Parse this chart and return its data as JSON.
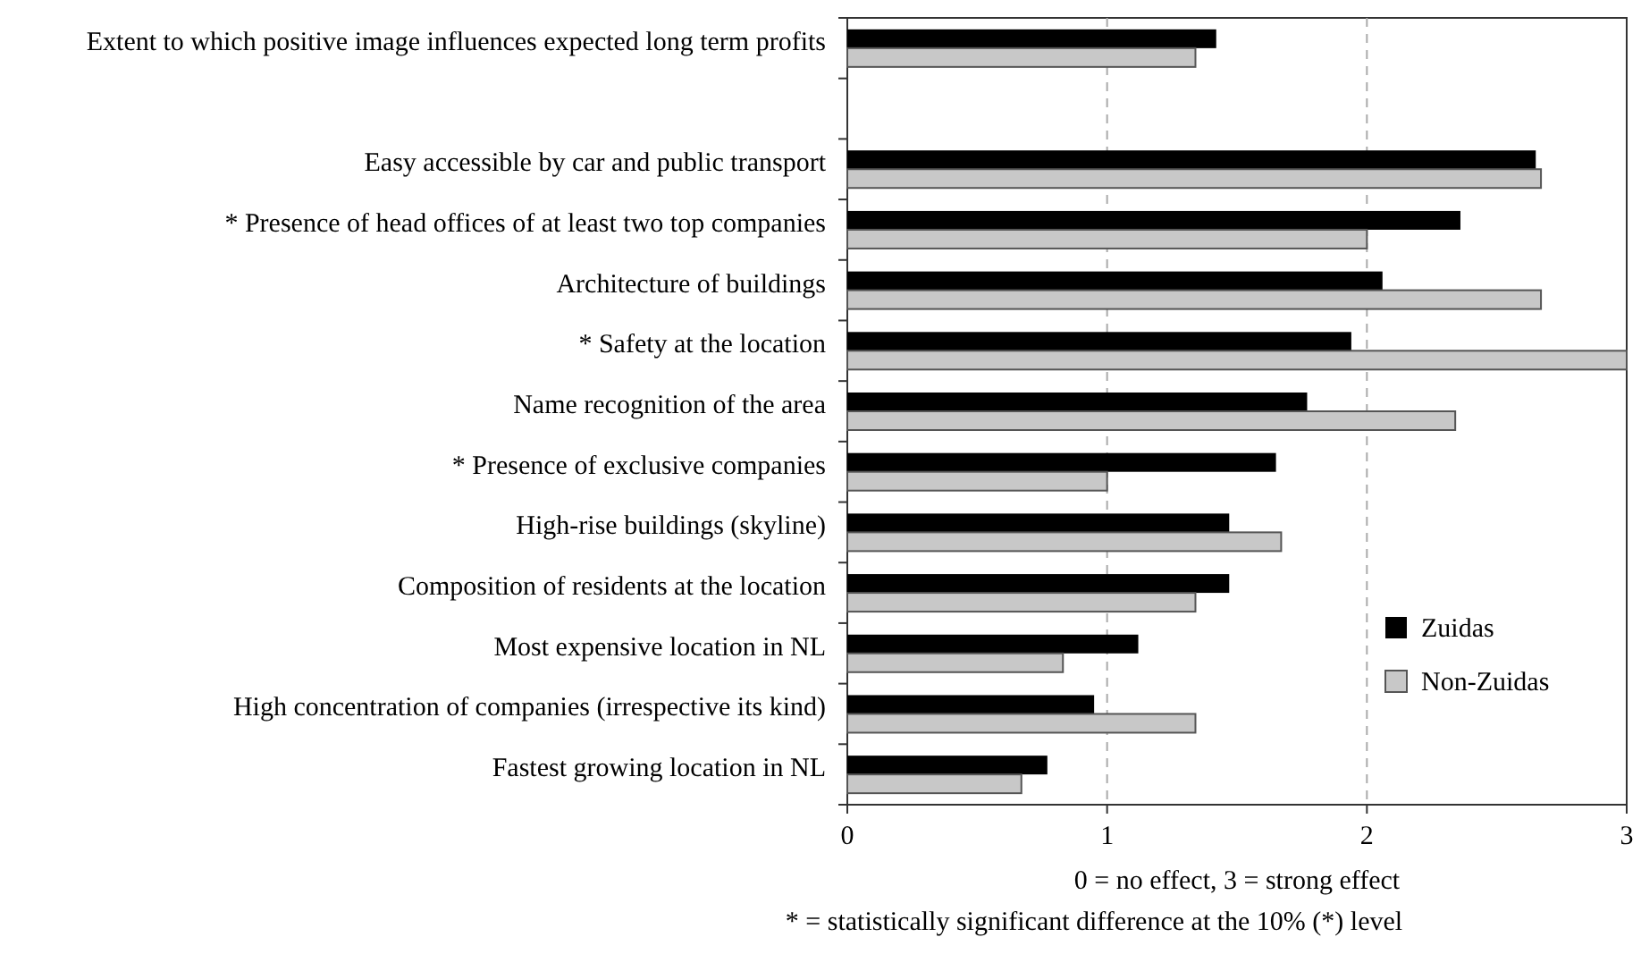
{
  "chart_data": {
    "type": "bar",
    "orientation": "horizontal",
    "categories": [
      "Extent to which positive image influences expected long term profits",
      null,
      "Easy accessible by car and public transport",
      "* Presence of head offices of at least two top companies",
      "Architecture of buildings",
      "* Safety at the location",
      "Name recognition of the area",
      "* Presence of exclusive companies",
      "High-rise buildings (skyline)",
      "Composition of residents at the location",
      "Most expensive location in NL",
      "High concentration of companies (irrespective its kind)",
      "Fastest growing location in NL"
    ],
    "series": [
      {
        "name": "Zuidas",
        "color": "#000000",
        "values": [
          1.42,
          null,
          2.65,
          2.36,
          2.06,
          1.94,
          1.77,
          1.65,
          1.47,
          1.47,
          1.12,
          0.95,
          0.77
        ]
      },
      {
        "name": "Non-Zuidas",
        "color": "#c8c8c8",
        "values": [
          1.34,
          null,
          2.67,
          2.0,
          2.67,
          3.0,
          2.34,
          1.0,
          1.67,
          1.34,
          0.83,
          1.34,
          0.67
        ]
      }
    ],
    "xlim": [
      0,
      3
    ],
    "xticks": [
      0,
      1,
      2,
      3
    ],
    "grid": "x",
    "legend": "bottom right",
    "xlabel": "0 = no effect, 3 = strong effect",
    "annotations": [
      "* = statistically significant difference at the 10% (*) level"
    ]
  }
}
